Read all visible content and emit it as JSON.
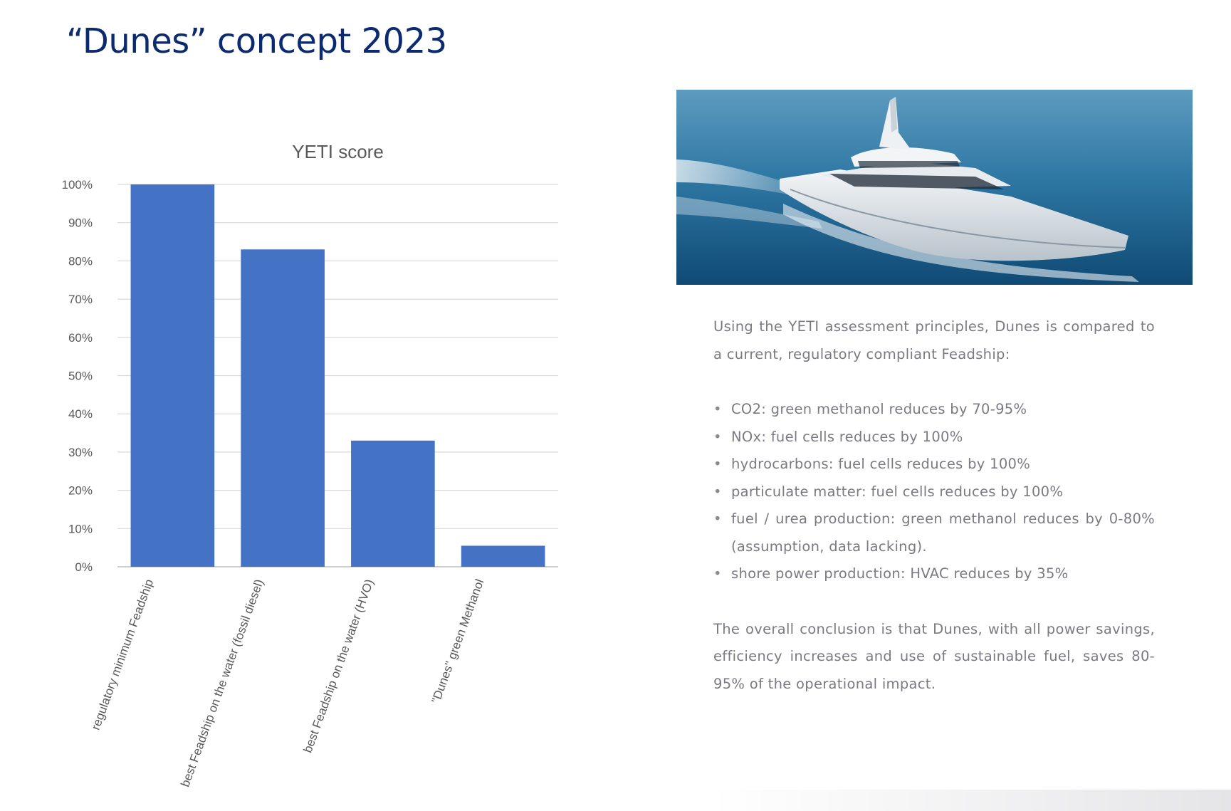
{
  "page": {
    "title": "“Dunes” concept 2023"
  },
  "chart_data": {
    "type": "bar",
    "title": "YETI score",
    "categories": [
      "regulatory minimum Feadship",
      "best Feadship on the water (fossil diesel)",
      "best Feadship on the water (HVO)",
      "\"Dunes\" green Methanol"
    ],
    "values": [
      100,
      83,
      33,
      5.5
    ],
    "ylim": [
      0,
      100
    ],
    "yticks": [
      0,
      10,
      20,
      30,
      40,
      50,
      60,
      70,
      80,
      90,
      100
    ],
    "ytick_suffix": "%",
    "grid": true,
    "bar_color": "#4472c4",
    "xlabel": "",
    "ylabel": ""
  },
  "image": {
    "subject": "white superyacht sailing on blue sea"
  },
  "description": {
    "intro": "Using the YETI assessment principles, Dunes is compared to a current, regulatory compliant Feadship:",
    "bullets": [
      "CO2: green methanol reduces by 70-95%",
      "NOx: fuel cells reduces by 100%",
      "hydrocarbons: fuel cells reduces by 100%",
      "particulate matter: fuel cells reduces by 100%",
      "fuel / urea production: green methanol reduces by 0-80% (assumption, data lacking).",
      "shore power production: HVAC reduces by 35%"
    ],
    "conclusion": "The overall conclusion is that Dunes, with all power savings, efficiency increases and use of sustainable fuel, saves 80-95% of the operational impact."
  },
  "colors": {
    "title": "#0b2a6f",
    "bar": "#4472c4",
    "body_text": "#7a7a82",
    "gridline": "#d9d9d9"
  }
}
